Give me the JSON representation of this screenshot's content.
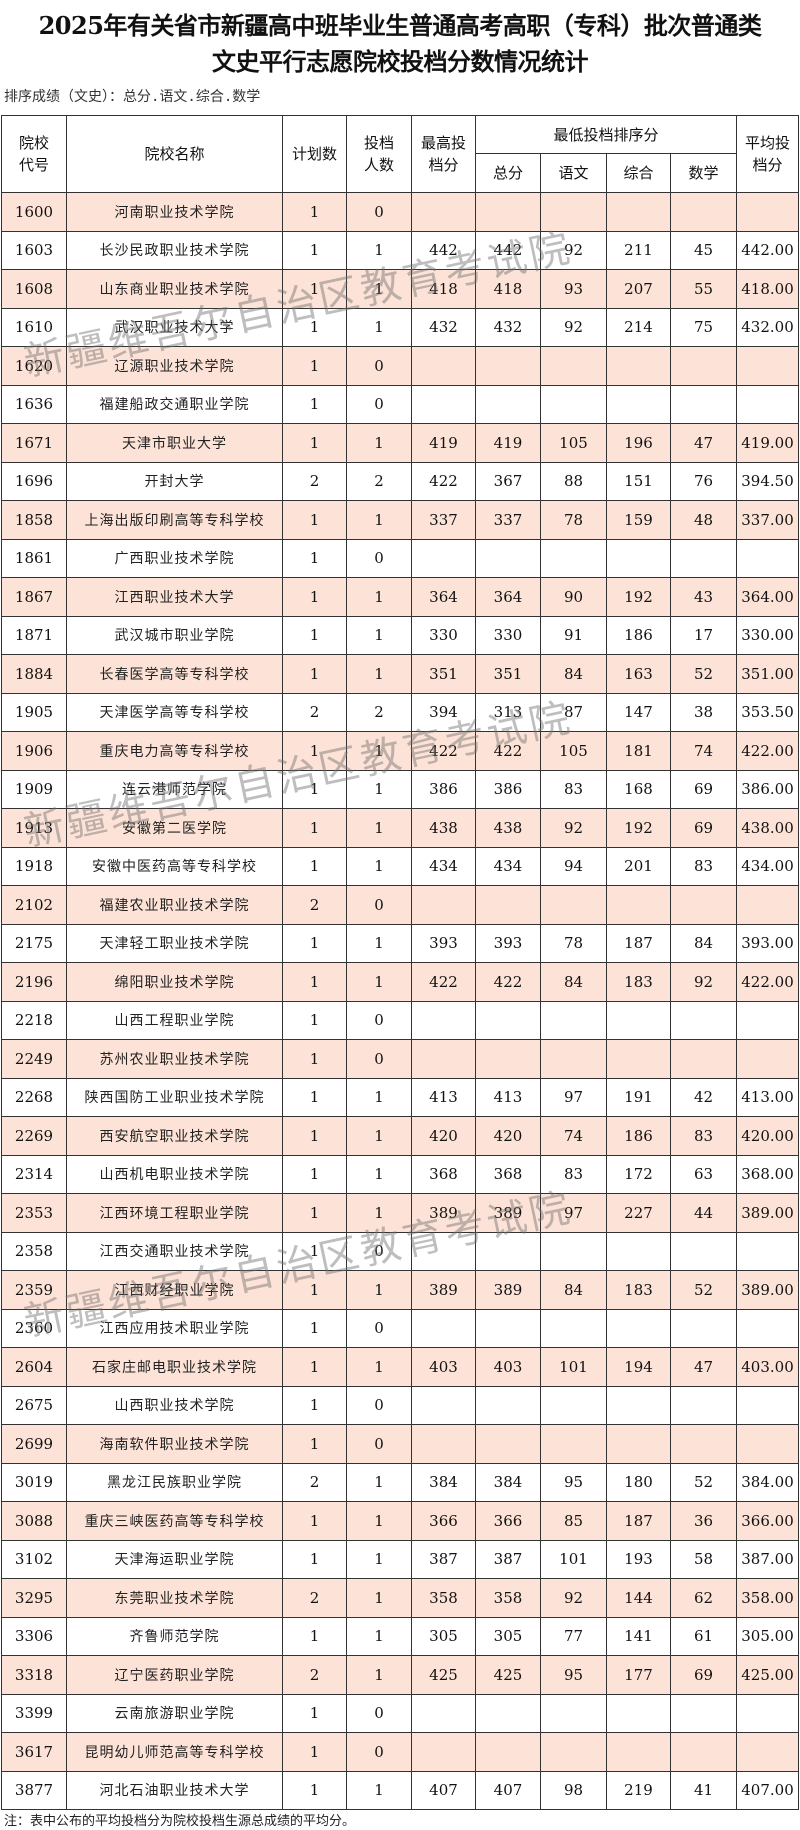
{
  "title_line1": "2025年有关省市新疆高中班毕业生普通高考高职（专科）批次普通类",
  "title_line2": "文史平行志愿院校投档分数情况统计",
  "sort_note": "排序成绩（文史）：总分.语文.综合.数学",
  "headers": {
    "code": "院校代号",
    "name": "院校名称",
    "plan": "计划数",
    "admitted": "投档人数",
    "max": "最高投档分",
    "min_group": "最低投档排序分",
    "total": "总分",
    "chinese": "语文",
    "comprehensive": "综合",
    "math": "数学",
    "avg": "平均投档分"
  },
  "rows": [
    [
      "1600",
      "河南职业技术学院",
      "1",
      "0",
      "",
      "",
      "",
      "",
      "",
      ""
    ],
    [
      "1603",
      "长沙民政职业技术学院",
      "1",
      "1",
      "442",
      "442",
      "92",
      "211",
      "45",
      "442.00"
    ],
    [
      "1608",
      "山东商业职业技术学院",
      "1",
      "1",
      "418",
      "418",
      "93",
      "207",
      "55",
      "418.00"
    ],
    [
      "1610",
      "武汉职业技术大学",
      "1",
      "1",
      "432",
      "432",
      "92",
      "214",
      "75",
      "432.00"
    ],
    [
      "1620",
      "辽源职业技术学院",
      "1",
      "0",
      "",
      "",
      "",
      "",
      "",
      ""
    ],
    [
      "1636",
      "福建船政交通职业学院",
      "1",
      "0",
      "",
      "",
      "",
      "",
      "",
      ""
    ],
    [
      "1671",
      "天津市职业大学",
      "1",
      "1",
      "419",
      "419",
      "105",
      "196",
      "47",
      "419.00"
    ],
    [
      "1696",
      "开封大学",
      "2",
      "2",
      "422",
      "367",
      "88",
      "151",
      "76",
      "394.50"
    ],
    [
      "1858",
      "上海出版印刷高等专科学校",
      "1",
      "1",
      "337",
      "337",
      "78",
      "159",
      "48",
      "337.00"
    ],
    [
      "1861",
      "广西职业技术学院",
      "1",
      "0",
      "",
      "",
      "",
      "",
      "",
      ""
    ],
    [
      "1867",
      "江西职业技术大学",
      "1",
      "1",
      "364",
      "364",
      "90",
      "192",
      "43",
      "364.00"
    ],
    [
      "1871",
      "武汉城市职业学院",
      "1",
      "1",
      "330",
      "330",
      "91",
      "186",
      "17",
      "330.00"
    ],
    [
      "1884",
      "长春医学高等专科学校",
      "1",
      "1",
      "351",
      "351",
      "84",
      "163",
      "52",
      "351.00"
    ],
    [
      "1905",
      "天津医学高等专科学校",
      "2",
      "2",
      "394",
      "313",
      "87",
      "147",
      "38",
      "353.50"
    ],
    [
      "1906",
      "重庆电力高等专科学校",
      "1",
      "1",
      "422",
      "422",
      "105",
      "181",
      "74",
      "422.00"
    ],
    [
      "1909",
      "连云港师范学院",
      "1",
      "1",
      "386",
      "386",
      "83",
      "168",
      "69",
      "386.00"
    ],
    [
      "1913",
      "安徽第二医学院",
      "1",
      "1",
      "438",
      "438",
      "92",
      "192",
      "69",
      "438.00"
    ],
    [
      "1918",
      "安徽中医药高等专科学校",
      "1",
      "1",
      "434",
      "434",
      "94",
      "201",
      "83",
      "434.00"
    ],
    [
      "2102",
      "福建农业职业技术学院",
      "2",
      "0",
      "",
      "",
      "",
      "",
      "",
      ""
    ],
    [
      "2175",
      "天津轻工职业技术学院",
      "1",
      "1",
      "393",
      "393",
      "78",
      "187",
      "84",
      "393.00"
    ],
    [
      "2196",
      "绵阳职业技术学院",
      "1",
      "1",
      "422",
      "422",
      "84",
      "183",
      "92",
      "422.00"
    ],
    [
      "2218",
      "山西工程职业学院",
      "1",
      "0",
      "",
      "",
      "",
      "",
      "",
      ""
    ],
    [
      "2249",
      "苏州农业职业技术学院",
      "1",
      "0",
      "",
      "",
      "",
      "",
      "",
      ""
    ],
    [
      "2268",
      "陕西国防工业职业技术学院",
      "1",
      "1",
      "413",
      "413",
      "97",
      "191",
      "42",
      "413.00"
    ],
    [
      "2269",
      "西安航空职业技术学院",
      "1",
      "1",
      "420",
      "420",
      "74",
      "186",
      "83",
      "420.00"
    ],
    [
      "2314",
      "山西机电职业技术学院",
      "1",
      "1",
      "368",
      "368",
      "83",
      "172",
      "63",
      "368.00"
    ],
    [
      "2353",
      "江西环境工程职业学院",
      "1",
      "1",
      "389",
      "389",
      "97",
      "227",
      "44",
      "389.00"
    ],
    [
      "2358",
      "江西交通职业技术学院",
      "1",
      "0",
      "",
      "",
      "",
      "",
      "",
      ""
    ],
    [
      "2359",
      "江西财经职业学院",
      "1",
      "1",
      "389",
      "389",
      "84",
      "183",
      "52",
      "389.00"
    ],
    [
      "2360",
      "江西应用技术职业学院",
      "1",
      "0",
      "",
      "",
      "",
      "",
      "",
      ""
    ],
    [
      "2604",
      "石家庄邮电职业技术学院",
      "1",
      "1",
      "403",
      "403",
      "101",
      "194",
      "47",
      "403.00"
    ],
    [
      "2675",
      "山西职业技术学院",
      "1",
      "0",
      "",
      "",
      "",
      "",
      "",
      ""
    ],
    [
      "2699",
      "海南软件职业技术学院",
      "1",
      "0",
      "",
      "",
      "",
      "",
      "",
      ""
    ],
    [
      "3019",
      "黑龙江民族职业学院",
      "2",
      "1",
      "384",
      "384",
      "95",
      "180",
      "52",
      "384.00"
    ],
    [
      "3088",
      "重庆三峡医药高等专科学校",
      "1",
      "1",
      "366",
      "366",
      "85",
      "187",
      "36",
      "366.00"
    ],
    [
      "3102",
      "天津海运职业学院",
      "1",
      "1",
      "387",
      "387",
      "101",
      "193",
      "58",
      "387.00"
    ],
    [
      "3295",
      "东莞职业技术学院",
      "2",
      "1",
      "358",
      "358",
      "92",
      "144",
      "62",
      "358.00"
    ],
    [
      "3306",
      "齐鲁师范学院",
      "1",
      "1",
      "305",
      "305",
      "77",
      "141",
      "61",
      "305.00"
    ],
    [
      "3318",
      "辽宁医药职业学院",
      "2",
      "1",
      "425",
      "425",
      "95",
      "177",
      "69",
      "425.00"
    ],
    [
      "3399",
      "云南旅游职业学院",
      "1",
      "0",
      "",
      "",
      "",
      "",
      "",
      ""
    ],
    [
      "3617",
      "昆明幼儿师范高等专科学校",
      "1",
      "0",
      "",
      "",
      "",
      "",
      "",
      ""
    ],
    [
      "3877",
      "河北石油职业技术大学",
      "1",
      "1",
      "407",
      "407",
      "98",
      "219",
      "41",
      "407.00"
    ]
  ],
  "footnote": "注：表中公布的平均投档分为院校投档生源总成绩的平均分。",
  "watermark": "新疆维吾尔自治区教育考试院",
  "colors": {
    "row_shade": "#fde3d7",
    "border": "#333333"
  }
}
